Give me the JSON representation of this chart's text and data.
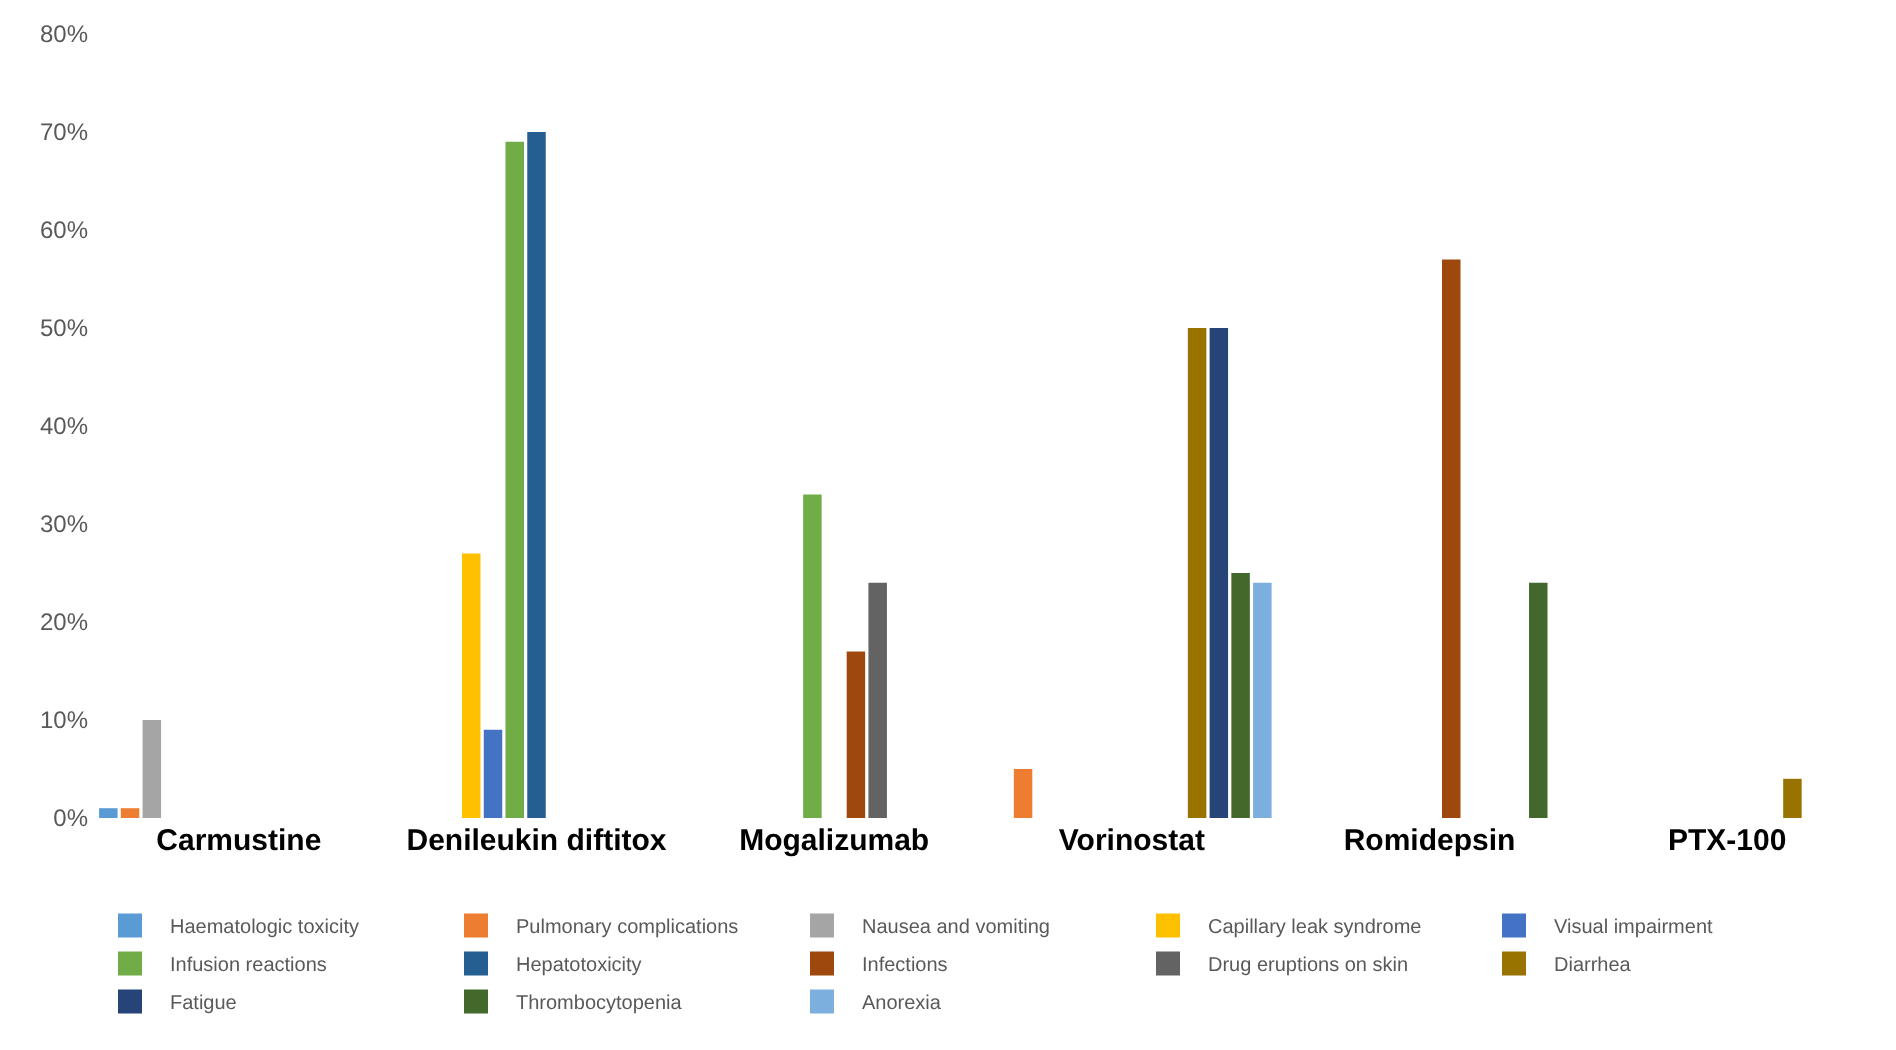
{
  "chart_data": {
    "type": "bar",
    "categories": [
      "Carmustine",
      "Denileukin diftitox",
      "Mogalizumab",
      "Vorinostat",
      "Romidepsin",
      "PTX-100"
    ],
    "series": [
      {
        "name": "Haematologic toxicity",
        "color": "#5b9bd5",
        "values": [
          1,
          null,
          null,
          null,
          null,
          null
        ]
      },
      {
        "name": "Pulmonary complications",
        "color": "#ed7d31",
        "values": [
          1,
          null,
          null,
          5,
          null,
          null
        ]
      },
      {
        "name": "Nausea and vomiting",
        "color": "#a5a5a5",
        "values": [
          10,
          null,
          null,
          null,
          null,
          null
        ]
      },
      {
        "name": "Capillary leak syndrome",
        "color": "#ffc000",
        "values": [
          null,
          27,
          null,
          null,
          null,
          null
        ]
      },
      {
        "name": "Visual impairment",
        "color": "#4472c4",
        "values": [
          null,
          9,
          null,
          null,
          null,
          null
        ]
      },
      {
        "name": "Infusion reactions",
        "color": "#70ad47",
        "values": [
          null,
          69,
          33,
          null,
          null,
          null
        ]
      },
      {
        "name": "Hepatotoxicity",
        "color": "#255e91",
        "values": [
          null,
          70,
          null,
          null,
          null,
          null
        ]
      },
      {
        "name": "Infections",
        "color": "#9e480e",
        "values": [
          null,
          null,
          17,
          null,
          57,
          null
        ]
      },
      {
        "name": "Drug eruptions on skin",
        "color": "#636363",
        "values": [
          null,
          null,
          24,
          null,
          null,
          null
        ]
      },
      {
        "name": "Diarrhea",
        "color": "#997300",
        "values": [
          null,
          null,
          null,
          50,
          null,
          4
        ]
      },
      {
        "name": "Fatigue",
        "color": "#264478",
        "values": [
          null,
          null,
          null,
          50,
          null,
          null
        ]
      },
      {
        "name": "Thrombocytopenia",
        "color": "#43682b",
        "values": [
          null,
          null,
          null,
          25,
          24,
          null
        ]
      },
      {
        "name": "Anorexia",
        "color": "#7cafdd",
        "values": [
          null,
          null,
          null,
          24,
          null,
          null
        ]
      }
    ],
    "ylim": [
      0,
      80
    ],
    "yticks": [
      {
        "value": 0,
        "label": "0%"
      },
      {
        "value": 10,
        "label": "10%"
      },
      {
        "value": 20,
        "label": "20%"
      },
      {
        "value": 30,
        "label": "30%"
      },
      {
        "value": 40,
        "label": "40%"
      },
      {
        "value": 50,
        "label": "50%"
      },
      {
        "value": 60,
        "label": "60%"
      },
      {
        "value": 70,
        "label": "70%"
      },
      {
        "value": 80,
        "label": "80%"
      }
    ],
    "grid": false,
    "legend": "bottom"
  }
}
